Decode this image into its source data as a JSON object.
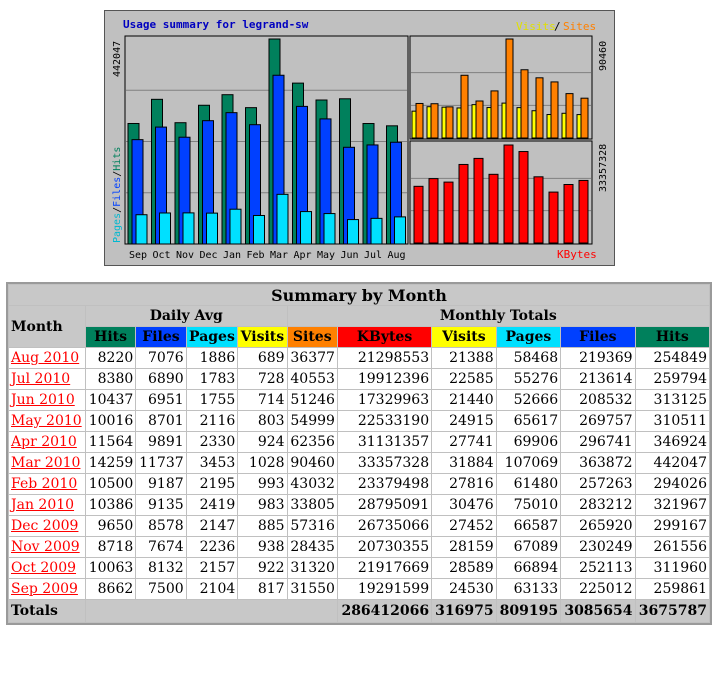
{
  "graph": {
    "title": "Usage summary for legrand-sw",
    "legend_visits": "Visits",
    "legend_slash": "/",
    "legend_sites": "Sites",
    "legend_kbytes": "KBytes",
    "left_axis_max_label": "442047",
    "left_axis_pages": "Pages",
    "left_axis_files": "Files",
    "left_axis_hits": "Hits",
    "right_top_max_label": "90460",
    "right_bottom_max_label": "33357328"
  },
  "chart_data": {
    "type": "bar",
    "title": "Usage summary for legrand-sw",
    "categories": [
      "Sep",
      "Oct",
      "Nov",
      "Dec",
      "Jan",
      "Feb",
      "Mar",
      "Apr",
      "May",
      "Jun",
      "Jul",
      "Aug"
    ],
    "series": [
      {
        "name": "Hits",
        "values": [
          259861,
          311960,
          261556,
          299167,
          321967,
          294026,
          442047,
          346924,
          310511,
          313125,
          259794,
          254849
        ],
        "color": "#00805c"
      },
      {
        "name": "Files",
        "values": [
          225012,
          252113,
          230249,
          265920,
          283212,
          257263,
          363872,
          296741,
          269757,
          208532,
          213614,
          219369
        ],
        "color": "#0040ff"
      },
      {
        "name": "Pages",
        "values": [
          63133,
          66894,
          67089,
          66587,
          75010,
          61480,
          107069,
          69906,
          65617,
          52666,
          55276,
          58468
        ],
        "color": "#00e0ff"
      },
      {
        "name": "Visits",
        "values": [
          24530,
          28589,
          28159,
          27452,
          30476,
          27816,
          31884,
          27741,
          24915,
          21440,
          22585,
          21388
        ],
        "color": "#ffff00"
      },
      {
        "name": "Sites",
        "values": [
          31550,
          31320,
          28435,
          57316,
          33805,
          43032,
          90460,
          62356,
          54999,
          51246,
          40553,
          36377
        ],
        "color": "#ff8000"
      },
      {
        "name": "KBytes",
        "values": [
          19291599,
          21917669,
          20730355,
          26735066,
          28795091,
          23379498,
          33357328,
          31131357,
          22533190,
          17329963,
          19912396,
          21298553
        ],
        "color": "#ff0000"
      }
    ],
    "ylim_hits": [
      0,
      442047
    ],
    "ylim_sites": [
      0,
      90460
    ],
    "ylim_kbytes": [
      0,
      33357328
    ]
  },
  "table": {
    "title": "Summary by Month",
    "month_header": "Month",
    "daily_avg_header": "Daily Avg",
    "monthly_totals_header": "Monthly Totals",
    "daily_cols": [
      "Hits",
      "Files",
      "Pages",
      "Visits"
    ],
    "monthly_cols": [
      "Sites",
      "KBytes",
      "Visits",
      "Pages",
      "Files",
      "Hits"
    ],
    "rows": [
      {
        "month": "Aug 2010",
        "d_hits": "8220",
        "d_files": "7076",
        "d_pages": "1886",
        "d_visits": "689",
        "sites": "36377",
        "kbytes": "21298553",
        "visits": "21388",
        "pages": "58468",
        "files": "219369",
        "hits": "254849"
      },
      {
        "month": "Jul 2010",
        "d_hits": "8380",
        "d_files": "6890",
        "d_pages": "1783",
        "d_visits": "728",
        "sites": "40553",
        "kbytes": "19912396",
        "visits": "22585",
        "pages": "55276",
        "files": "213614",
        "hits": "259794"
      },
      {
        "month": "Jun 2010",
        "d_hits": "10437",
        "d_files": "6951",
        "d_pages": "1755",
        "d_visits": "714",
        "sites": "51246",
        "kbytes": "17329963",
        "visits": "21440",
        "pages": "52666",
        "files": "208532",
        "hits": "313125"
      },
      {
        "month": "May 2010",
        "d_hits": "10016",
        "d_files": "8701",
        "d_pages": "2116",
        "d_visits": "803",
        "sites": "54999",
        "kbytes": "22533190",
        "visits": "24915",
        "pages": "65617",
        "files": "269757",
        "hits": "310511"
      },
      {
        "month": "Apr 2010",
        "d_hits": "11564",
        "d_files": "9891",
        "d_pages": "2330",
        "d_visits": "924",
        "sites": "62356",
        "kbytes": "31131357",
        "visits": "27741",
        "pages": "69906",
        "files": "296741",
        "hits": "346924"
      },
      {
        "month": "Mar 2010",
        "d_hits": "14259",
        "d_files": "11737",
        "d_pages": "3453",
        "d_visits": "1028",
        "sites": "90460",
        "kbytes": "33357328",
        "visits": "31884",
        "pages": "107069",
        "files": "363872",
        "hits": "442047"
      },
      {
        "month": "Feb 2010",
        "d_hits": "10500",
        "d_files": "9187",
        "d_pages": "2195",
        "d_visits": "993",
        "sites": "43032",
        "kbytes": "23379498",
        "visits": "27816",
        "pages": "61480",
        "files": "257263",
        "hits": "294026"
      },
      {
        "month": "Jan 2010",
        "d_hits": "10386",
        "d_files": "9135",
        "d_pages": "2419",
        "d_visits": "983",
        "sites": "33805",
        "kbytes": "28795091",
        "visits": "30476",
        "pages": "75010",
        "files": "283212",
        "hits": "321967"
      },
      {
        "month": "Dec 2009",
        "d_hits": "9650",
        "d_files": "8578",
        "d_pages": "2147",
        "d_visits": "885",
        "sites": "57316",
        "kbytes": "26735066",
        "visits": "27452",
        "pages": "66587",
        "files": "265920",
        "hits": "299167"
      },
      {
        "month": "Nov 2009",
        "d_hits": "8718",
        "d_files": "7674",
        "d_pages": "2236",
        "d_visits": "938",
        "sites": "28435",
        "kbytes": "20730355",
        "visits": "28159",
        "pages": "67089",
        "files": "230249",
        "hits": "261556"
      },
      {
        "month": "Oct 2009",
        "d_hits": "10063",
        "d_files": "8132",
        "d_pages": "2157",
        "d_visits": "922",
        "sites": "31320",
        "kbytes": "21917669",
        "visits": "28589",
        "pages": "66894",
        "files": "252113",
        "hits": "311960"
      },
      {
        "month": "Sep 2009",
        "d_hits": "8662",
        "d_files": "7500",
        "d_pages": "2104",
        "d_visits": "817",
        "sites": "31550",
        "kbytes": "19291599",
        "visits": "24530",
        "pages": "63133",
        "files": "225012",
        "hits": "259861"
      }
    ],
    "totals": {
      "label": "Totals",
      "kbytes": "286412066",
      "visits": "316975",
      "pages": "809195",
      "files": "3085654",
      "hits": "3675787"
    }
  }
}
